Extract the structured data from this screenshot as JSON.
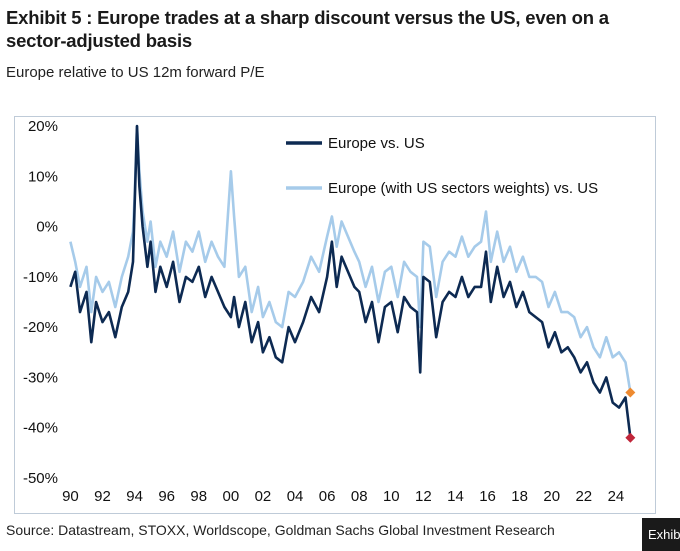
{
  "title": "Exhibit 5 : Europe trades at a sharp discount versus the US, even on a sector-adjusted basis",
  "subtitle": "Europe relative to US 12m forward P/E",
  "source": "Source: Datastream, STOXX, Worldscope, Goldman Sachs Global Investment Research",
  "corner_tag": "Exhibit",
  "colors": {
    "europe_vs_us": "#0d2a52",
    "sector_weighted": "#a6cbea",
    "end_marker_dark": "#c0263a",
    "end_marker_light": "#ee8a30"
  },
  "chart_data": {
    "type": "line",
    "title": "Europe relative to US 12m forward P/E",
    "xlabel": "",
    "ylabel": "",
    "xlim": [
      1989.6,
      2026.0
    ],
    "ylim": [
      -50,
      20
    ],
    "x_tick_labels": [
      "90",
      "92",
      "94",
      "96",
      "98",
      "00",
      "02",
      "04",
      "06",
      "08",
      "10",
      "12",
      "14",
      "16",
      "18",
      "20",
      "22",
      "24"
    ],
    "x_tick_years": [
      1990,
      1992,
      1994,
      1996,
      1998,
      2000,
      2002,
      2004,
      2006,
      2008,
      2010,
      2012,
      2014,
      2016,
      2018,
      2020,
      2022,
      2024
    ],
    "y_ticks": [
      20,
      10,
      0,
      -10,
      -20,
      -30,
      -40,
      -50
    ],
    "y_tick_labels": [
      "20%",
      "10%",
      "0%",
      "-10%",
      "-20%",
      "-30%",
      "-40%",
      "-50%"
    ],
    "legend": [
      "Europe vs. US",
      "Europe (with US sectors weights) vs. US"
    ],
    "legend_position": "top-right",
    "series": [
      {
        "name": "Europe vs. US",
        "x": [
          1990.0,
          1990.3,
          1990.6,
          1991.0,
          1991.3,
          1991.6,
          1992.0,
          1992.4,
          1992.8,
          1993.2,
          1993.6,
          1993.9,
          1994.0,
          1994.15,
          1994.3,
          1994.5,
          1994.8,
          1995.0,
          1995.3,
          1995.6,
          1996.0,
          1996.4,
          1996.8,
          1997.2,
          1997.6,
          1998.0,
          1998.4,
          1998.8,
          1999.2,
          1999.6,
          2000.0,
          2000.2,
          2000.5,
          2000.9,
          2001.3,
          2001.7,
          2002.0,
          2002.4,
          2002.8,
          2003.2,
          2003.6,
          2004.0,
          2004.5,
          2005.0,
          2005.5,
          2006.0,
          2006.3,
          2006.6,
          2006.9,
          2007.3,
          2007.7,
          2008.0,
          2008.4,
          2008.8,
          2009.2,
          2009.6,
          2010.0,
          2010.4,
          2010.8,
          2011.2,
          2011.6,
          2011.8,
          2012.0,
          2012.4,
          2012.8,
          2013.2,
          2013.6,
          2014.0,
          2014.4,
          2014.8,
          2015.2,
          2015.6,
          2015.9,
          2016.2,
          2016.6,
          2017.0,
          2017.4,
          2017.8,
          2018.2,
          2018.6,
          2019.0,
          2019.4,
          2019.8,
          2020.2,
          2020.6,
          2021.0,
          2021.4,
          2021.8,
          2022.2,
          2022.6,
          2023.0,
          2023.4,
          2023.8,
          2024.2,
          2024.6,
          2024.9
        ],
        "values": [
          -12,
          -9,
          -17,
          -13,
          -23,
          -15,
          -19,
          -17,
          -22,
          -16,
          -13,
          -7,
          4,
          20,
          8,
          0,
          -8,
          -3,
          -13,
          -8,
          -12,
          -7,
          -15,
          -10,
          -11,
          -8,
          -14,
          -10,
          -13,
          -16,
          -18,
          -14,
          -20,
          -15,
          -23,
          -19,
          -25,
          -22,
          -26,
          -27,
          -20,
          -23,
          -19,
          -14,
          -17,
          -10,
          -3,
          -12,
          -6,
          -9,
          -12,
          -13,
          -19,
          -15,
          -23,
          -16,
          -15,
          -21,
          -14,
          -16,
          -17,
          -29,
          -10,
          -11,
          -22,
          -15,
          -13,
          -14,
          -10,
          -14,
          -12,
          -12,
          -5,
          -15,
          -8,
          -14,
          -11,
          -16,
          -13,
          -17,
          -18,
          -19,
          -24,
          -21,
          -25,
          -24,
          -26,
          -29,
          -27,
          -31,
          -33,
          -30,
          -35,
          -36,
          -34,
          -42
        ]
      },
      {
        "name": "Europe (with US sectors weights) vs. US",
        "x": [
          1990.0,
          1990.3,
          1990.6,
          1991.0,
          1991.3,
          1991.6,
          1992.0,
          1992.4,
          1992.8,
          1993.2,
          1993.6,
          1993.9,
          1994.0,
          1994.15,
          1994.3,
          1994.5,
          1994.8,
          1995.0,
          1995.3,
          1995.6,
          1996.0,
          1996.4,
          1996.8,
          1997.2,
          1997.6,
          1998.0,
          1998.4,
          1998.8,
          1999.2,
          1999.6,
          2000.0,
          2000.2,
          2000.5,
          2000.9,
          2001.3,
          2001.7,
          2002.0,
          2002.4,
          2002.8,
          2003.2,
          2003.6,
          2004.0,
          2004.5,
          2005.0,
          2005.5,
          2006.0,
          2006.3,
          2006.6,
          2006.9,
          2007.3,
          2007.7,
          2008.0,
          2008.4,
          2008.8,
          2009.2,
          2009.6,
          2010.0,
          2010.4,
          2010.8,
          2011.2,
          2011.6,
          2011.8,
          2012.0,
          2012.4,
          2012.8,
          2013.2,
          2013.6,
          2014.0,
          2014.4,
          2014.8,
          2015.2,
          2015.6,
          2015.9,
          2016.2,
          2016.6,
          2017.0,
          2017.4,
          2017.8,
          2018.2,
          2018.6,
          2019.0,
          2019.4,
          2019.8,
          2020.2,
          2020.6,
          2021.0,
          2021.4,
          2021.8,
          2022.2,
          2022.6,
          2023.0,
          2023.4,
          2023.8,
          2024.2,
          2024.6,
          2024.9
        ],
        "values": [
          -3,
          -7,
          -12,
          -8,
          -17,
          -10,
          -13,
          -11,
          -16,
          -10,
          -6,
          -1,
          6,
          20,
          11,
          3,
          -3,
          1,
          -8,
          -3,
          -6,
          -1,
          -9,
          -3,
          -5,
          -1,
          -7,
          -3,
          -6,
          -8,
          11,
          2,
          -10,
          -8,
          -17,
          -12,
          -18,
          -15,
          -19,
          -20,
          -13,
          -14,
          -11,
          -6,
          -9,
          -2,
          2,
          -4,
          1,
          -2,
          -5,
          -7,
          -12,
          -8,
          -15,
          -9,
          -8,
          -14,
          -7,
          -9,
          -10,
          -20,
          -3,
          -4,
          -14,
          -7,
          -5,
          -6,
          -2,
          -6,
          -4,
          -3,
          3,
          -7,
          -1,
          -7,
          -4,
          -9,
          -6,
          -10,
          -10,
          -11,
          -16,
          -13,
          -17,
          -17,
          -18,
          -22,
          -20,
          -24,
          -26,
          -22,
          -26,
          -25,
          -27,
          -33
        ]
      }
    ]
  }
}
